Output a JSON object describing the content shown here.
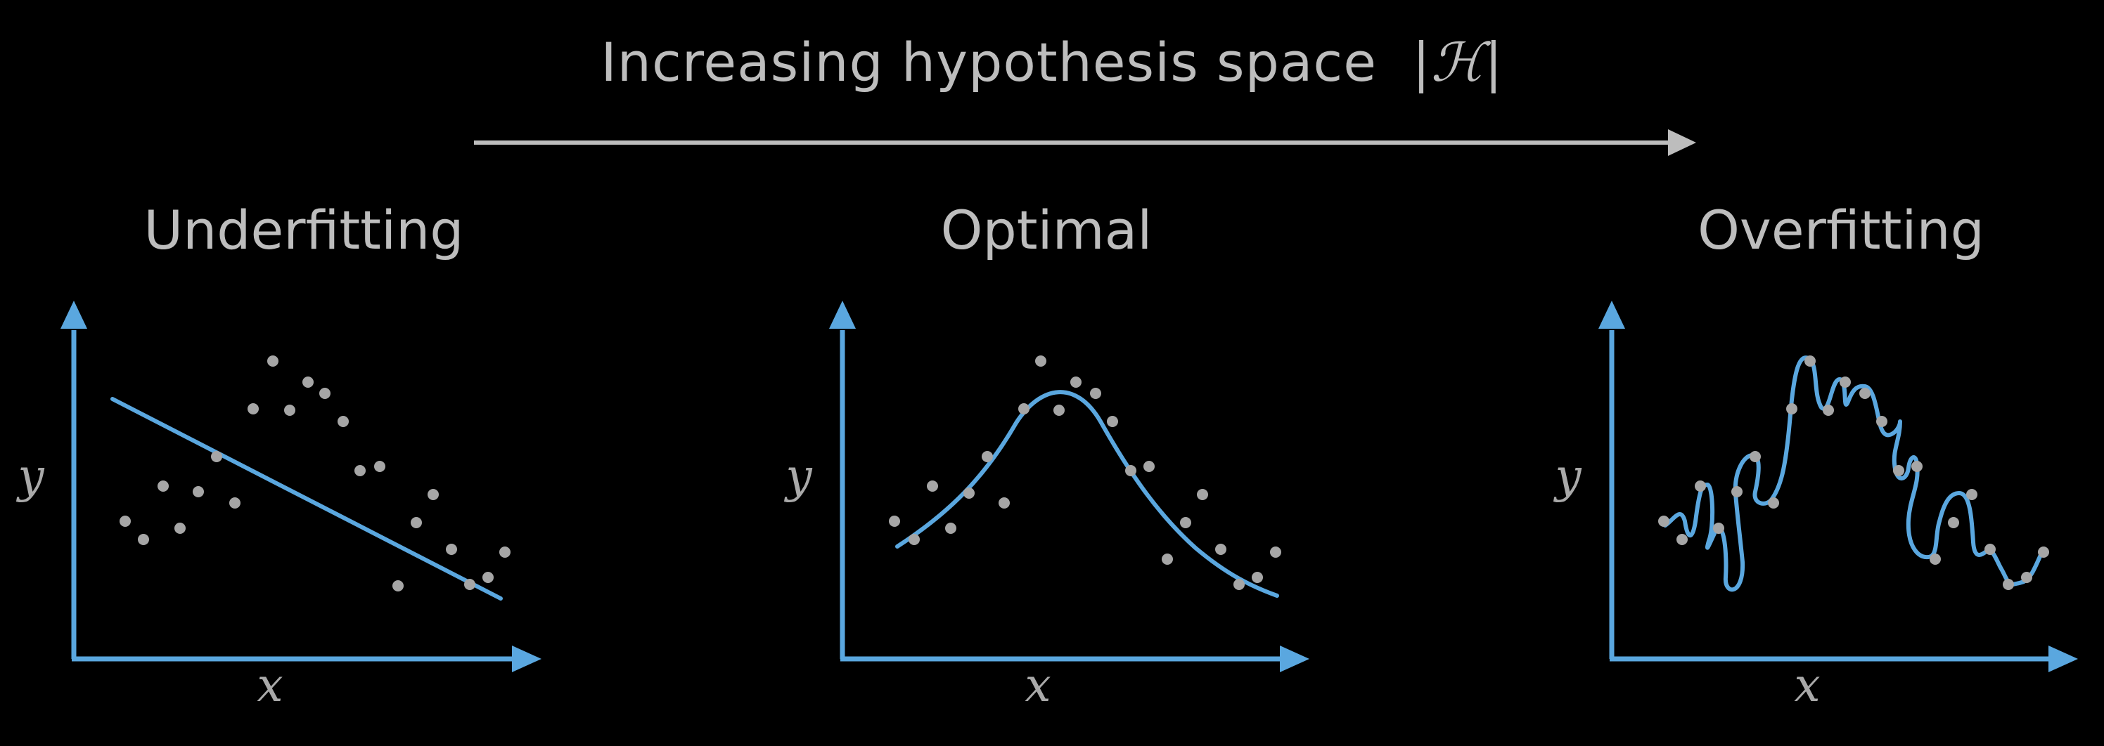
{
  "header": {
    "title_text": "Increasing hypothesis space",
    "title_symbol": "|ℋ|"
  },
  "colors": {
    "background": "#000000",
    "text": "#bdbdbd",
    "axis": "#5aa7df",
    "points": "#a6a6a6"
  },
  "panels": [
    {
      "title": "Underfitting",
      "xlabel": "x",
      "ylabel": "y",
      "fit": "linear"
    },
    {
      "title": "Optimal",
      "xlabel": "x",
      "ylabel": "y",
      "fit": "smooth-peak"
    },
    {
      "title": "Overfitting",
      "xlabel": "x",
      "ylabel": "y",
      "fit": "wiggly-interpolating"
    }
  ]
}
